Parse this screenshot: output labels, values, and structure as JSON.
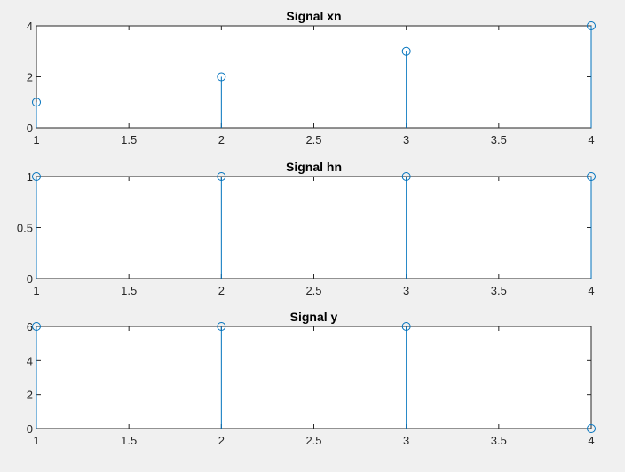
{
  "figure": {
    "background": "#f0f0f0",
    "axes_background": "#ffffff",
    "stem_color": "#0072bd",
    "axis_color": "#262626"
  },
  "chart_data": [
    {
      "type": "stem",
      "title": "Signal xn",
      "x": [
        1,
        2,
        3,
        4
      ],
      "y": [
        1,
        2,
        3,
        4
      ],
      "xlim": [
        1,
        4
      ],
      "ylim": [
        0,
        4
      ],
      "xticks": [
        1,
        1.5,
        2,
        2.5,
        3,
        3.5,
        4
      ],
      "xtick_labels": [
        "1",
        "1.5",
        "2",
        "2.5",
        "3",
        "3.5",
        "4"
      ],
      "yticks": [
        0,
        2,
        4
      ],
      "ytick_labels": [
        "0",
        "2",
        "4"
      ],
      "grid": false,
      "xlabel": "",
      "ylabel": ""
    },
    {
      "type": "stem",
      "title": "Signal hn",
      "x": [
        1,
        2,
        3,
        4
      ],
      "y": [
        1,
        1,
        1,
        1
      ],
      "xlim": [
        1,
        4
      ],
      "ylim": [
        0,
        1
      ],
      "xticks": [
        1,
        1.5,
        2,
        2.5,
        3,
        3.5,
        4
      ],
      "xtick_labels": [
        "1",
        "1.5",
        "2",
        "2.5",
        "3",
        "3.5",
        "4"
      ],
      "yticks": [
        0,
        0.5,
        1
      ],
      "ytick_labels": [
        "0",
        "0.5",
        "1"
      ],
      "grid": false,
      "xlabel": "",
      "ylabel": ""
    },
    {
      "type": "stem",
      "title": "Signal y",
      "x": [
        1,
        2,
        3,
        4
      ],
      "y": [
        6,
        6,
        6,
        0
      ],
      "xlim": [
        1,
        4
      ],
      "ylim": [
        0,
        6
      ],
      "xticks": [
        1,
        1.5,
        2,
        2.5,
        3,
        3.5,
        4
      ],
      "xtick_labels": [
        "1",
        "1.5",
        "2",
        "2.5",
        "3",
        "3.5",
        "4"
      ],
      "yticks": [
        0,
        2,
        4,
        6
      ],
      "ytick_labels": [
        "0",
        "2",
        "4",
        "6"
      ],
      "grid": false,
      "xlabel": "",
      "ylabel": ""
    }
  ]
}
